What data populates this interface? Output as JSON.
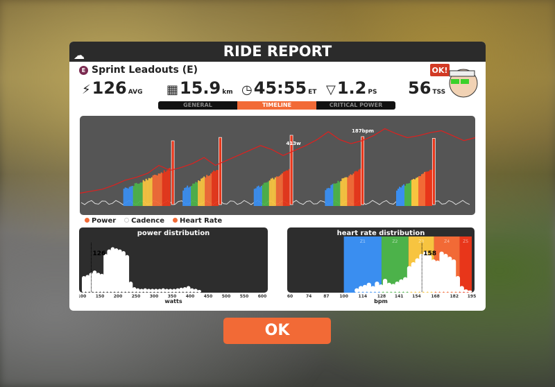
{
  "header": {
    "title": "RIDE REPORT",
    "cloud_icon": "cloud-upload-icon"
  },
  "workout": {
    "badge": "E",
    "name": "Sprint Leadouts (E)"
  },
  "stats": [
    {
      "icon": "⚡",
      "value": "126",
      "unit": "AVG"
    },
    {
      "icon": "▦",
      "value": "15.9",
      "unit": "km"
    },
    {
      "icon": "◷",
      "value": "45:55",
      "unit": "ET"
    },
    {
      "icon": "▽",
      "value": "1.2",
      "unit": "PS"
    },
    {
      "icon": "",
      "value": "56",
      "unit": "TSS"
    }
  ],
  "avatar_bubble": "OK!",
  "tabs": [
    "GENERAL",
    "TIMELINE",
    "CRITICAL POWER"
  ],
  "active_tab": 1,
  "legend": [
    "Power",
    "Cadence",
    "Heart Rate"
  ],
  "colors": {
    "accent": "#f26a36",
    "hr": "#e0201e",
    "z1": "#3a8ef0",
    "z2": "#4cb24a",
    "z3": "#f7c440",
    "z4": "#f26a36",
    "z5": "#e8361a"
  },
  "chart_data": [
    {
      "type": "line",
      "title": "timeline",
      "annotations": [
        "413w",
        "187bpm"
      ],
      "hr_bpm": [
        122,
        124,
        126,
        130,
        135,
        138,
        142,
        150,
        145,
        148,
        152,
        158,
        150,
        155,
        160,
        165,
        170,
        166,
        160,
        165,
        170,
        176,
        184,
        176,
        172,
        175,
        180,
        187,
        182,
        178,
        180,
        183,
        185,
        180,
        175,
        178
      ],
      "power_intervals": [
        {
          "start": 0.11,
          "end": 0.23
        },
        {
          "start": 0.26,
          "end": 0.35
        },
        {
          "start": 0.44,
          "end": 0.53
        },
        {
          "start": 0.62,
          "end": 0.71
        },
        {
          "start": 0.8,
          "end": 0.89
        }
      ],
      "sprint_peaks_w": [
        380,
        400,
        413,
        405,
        395
      ]
    },
    {
      "type": "bar",
      "title": "power distribution",
      "xlabel": "watts",
      "marker": "126",
      "ticks": [
        "100",
        "150",
        "200",
        "250",
        "300",
        "350",
        "400",
        "450",
        "500",
        "550",
        "600"
      ],
      "xlim": [
        100,
        600
      ],
      "bins": [
        100,
        110,
        120,
        130,
        140,
        150,
        160,
        170,
        180,
        190,
        200,
        210,
        220,
        230,
        240,
        250,
        260,
        270,
        280,
        290,
        300,
        310,
        320,
        330,
        340,
        350,
        360,
        370,
        380,
        390,
        400,
        410,
        420
      ],
      "values": [
        30,
        32,
        36,
        40,
        36,
        34,
        70,
        78,
        82,
        80,
        78,
        75,
        68,
        20,
        10,
        8,
        7,
        8,
        7,
        7,
        7,
        7,
        8,
        7,
        7,
        7,
        8,
        9,
        10,
        12,
        8,
        7,
        5
      ]
    },
    {
      "type": "bar",
      "title": "heart rate distribution",
      "xlabel": "bpm",
      "marker": "158",
      "ticks": [
        "60",
        "74",
        "87",
        "100",
        "114",
        "128",
        "141",
        "154",
        "168",
        "182",
        "195"
      ],
      "xlim": [
        60,
        195
      ],
      "zones": [
        "Z1",
        "Z2",
        "Z3",
        "Z4",
        "Z5"
      ],
      "bins": [
        108,
        111,
        114,
        117,
        120,
        123,
        126,
        129,
        132,
        135,
        138,
        141,
        144,
        147,
        150,
        153,
        156,
        159,
        162,
        165,
        168,
        171,
        174,
        177,
        180,
        183,
        186,
        189,
        192
      ],
      "values": [
        8,
        12,
        14,
        18,
        12,
        20,
        15,
        25,
        18,
        16,
        20,
        24,
        28,
        48,
        55,
        62,
        70,
        75,
        68,
        60,
        58,
        74,
        70,
        65,
        60,
        30,
        12,
        6,
        4
      ]
    }
  ]
}
